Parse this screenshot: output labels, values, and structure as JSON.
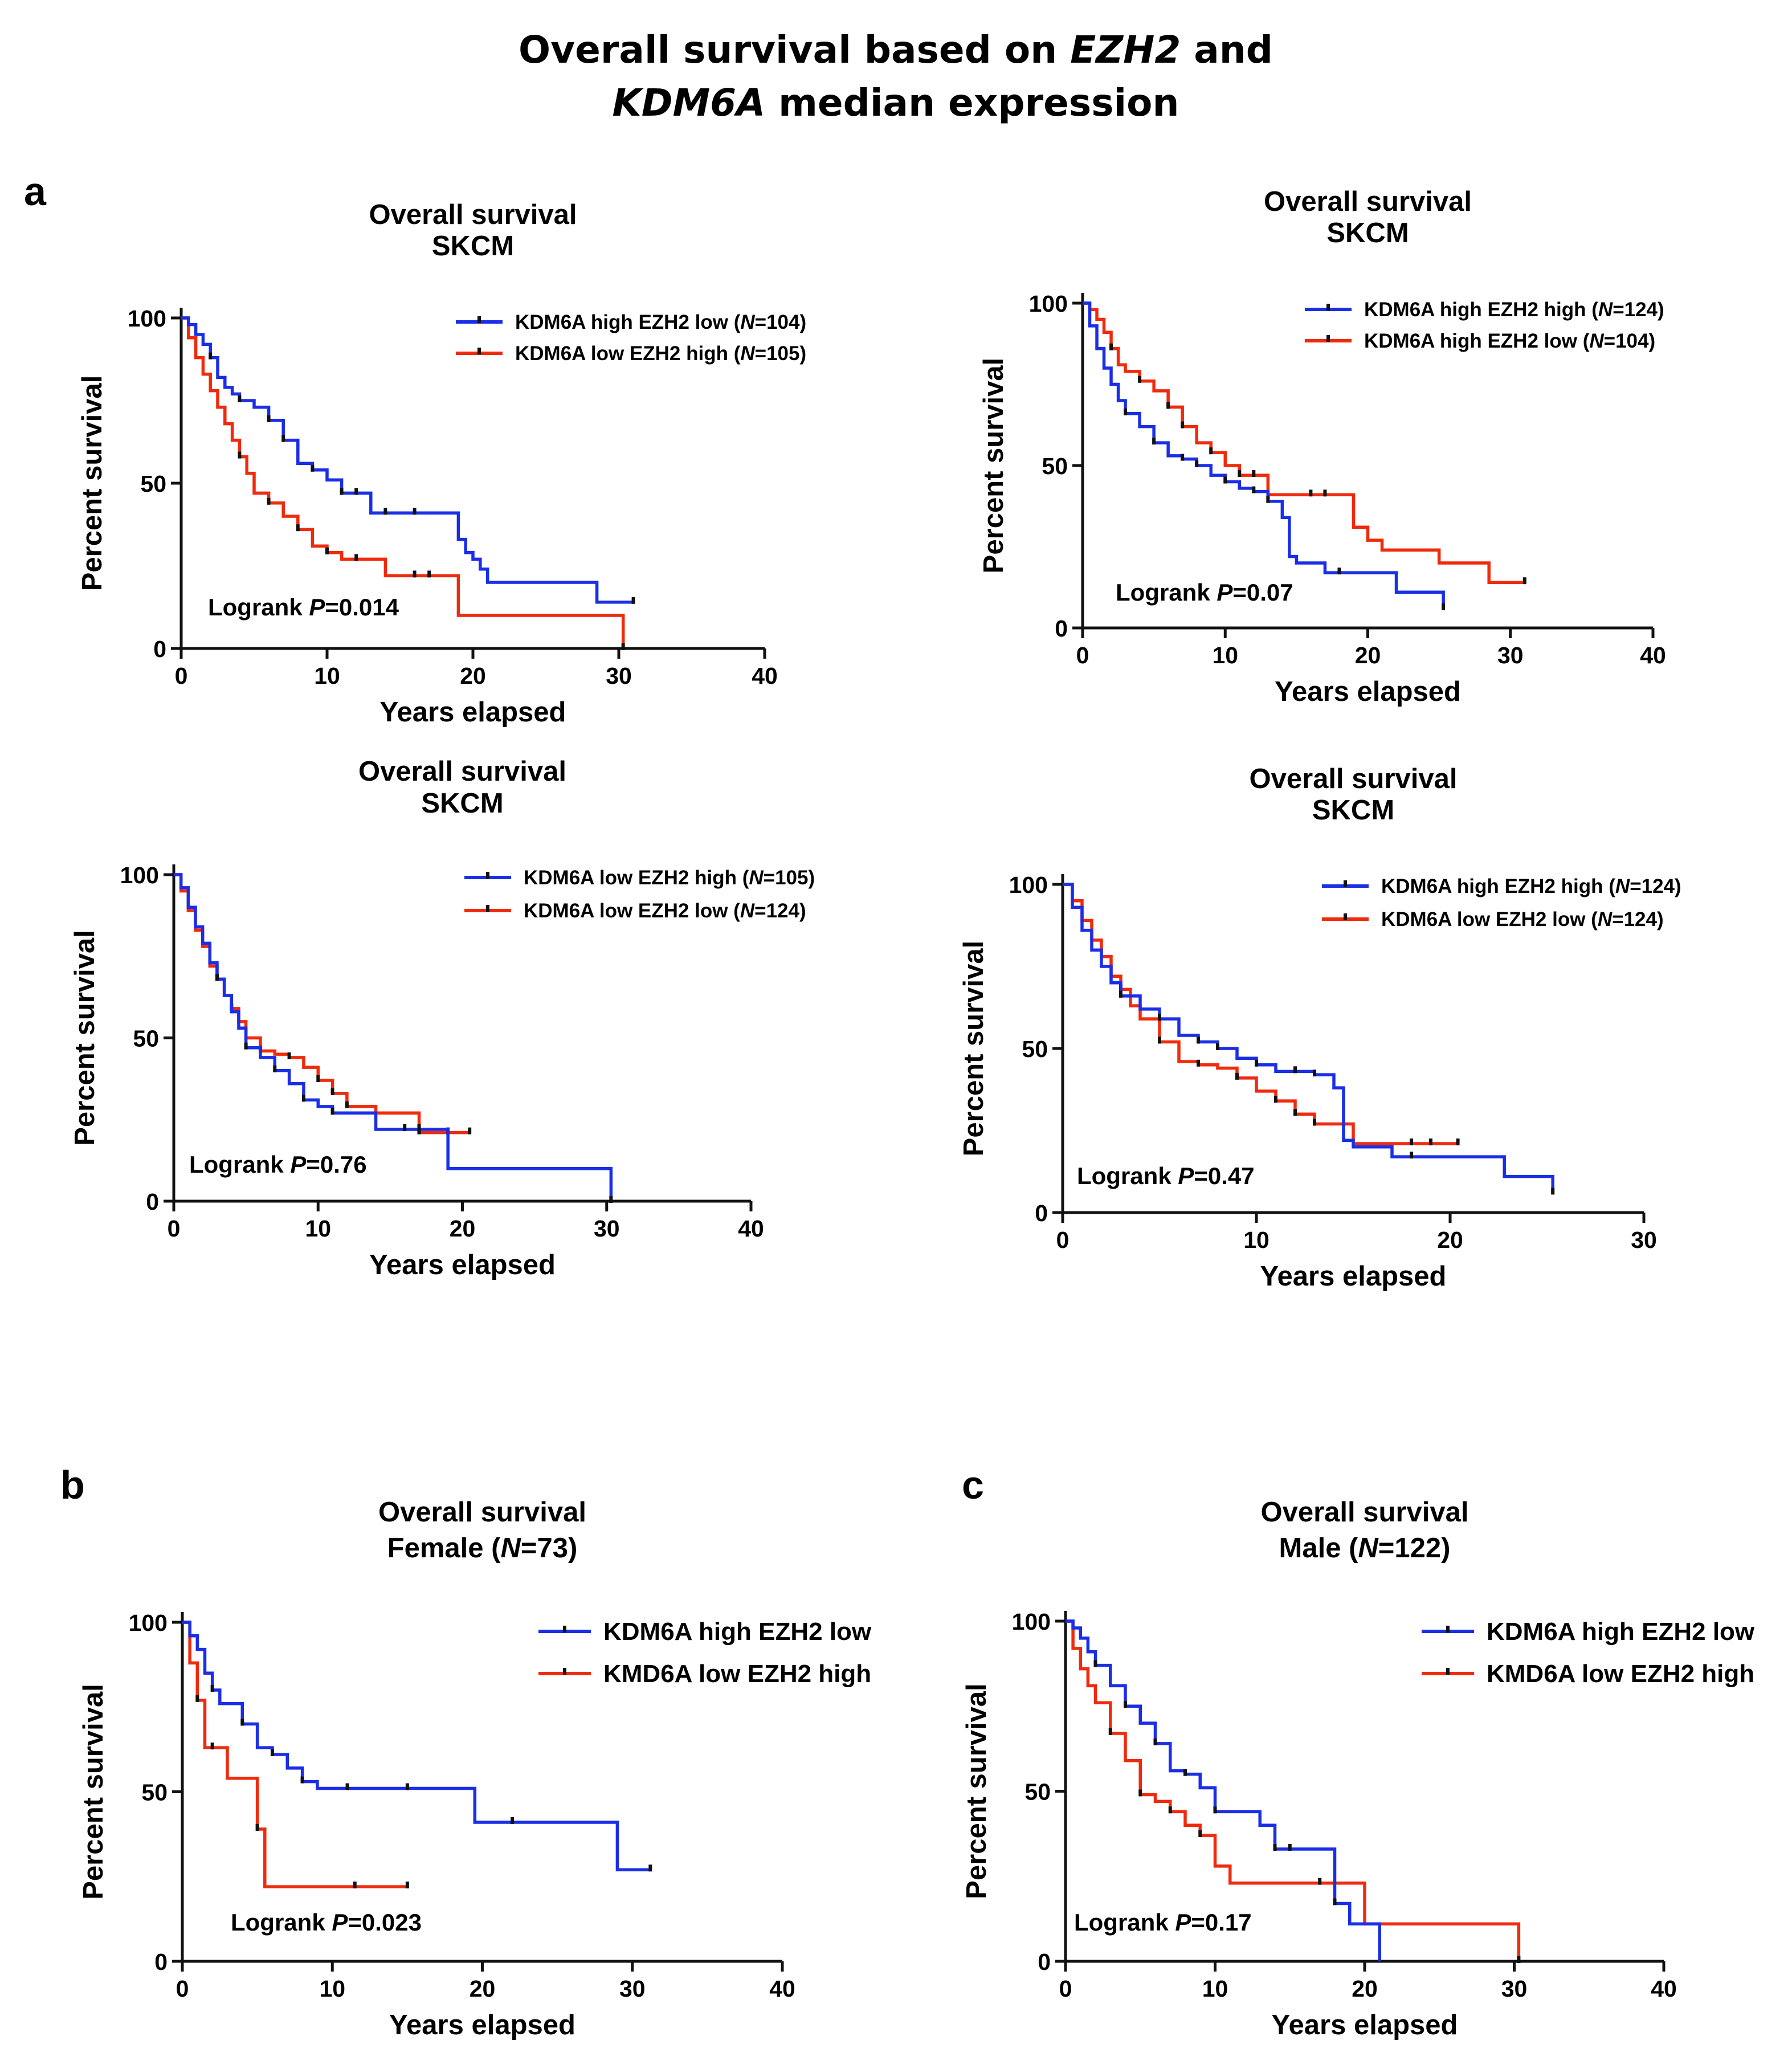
{
  "figure": {
    "title_line1_pre": "Overall survival based on ",
    "title_line1_em": "EZH2",
    "title_line1_post": " and",
    "title_line2_em": "KDM6A",
    "title_line2_post": " median expression",
    "panel_labels": [
      "a",
      "b",
      "c"
    ]
  },
  "colors": {
    "blue": "#1a2ee8",
    "red": "#f02a0c",
    "axis": "#111111",
    "censor": "#111111"
  },
  "chart_data": [
    {
      "type": "line",
      "subtype": "kaplan-meier",
      "title": "Overall survival",
      "subtitle": "SKCM",
      "xlabel": "Years elapsed",
      "ylabel": "Percent survival",
      "xlim": [
        0,
        40
      ],
      "ylim": [
        0,
        100
      ],
      "xticks": [
        0,
        10,
        20,
        30,
        40
      ],
      "yticks": [
        0,
        50,
        100
      ],
      "legend_position": "top-right",
      "logrank_label": "Logrank ",
      "logrank_p": "P",
      "logrank_value": "=0.014",
      "series": [
        {
          "name": "KDM6A high EZH2 low",
          "n": "104",
          "color": "blue",
          "x": [
            0,
            0.5,
            1,
            1.5,
            2,
            2.5,
            3,
            3.5,
            4,
            5,
            6,
            7,
            8,
            9,
            10,
            11,
            12,
            13,
            16,
            18.5,
            19,
            19.5,
            20,
            20.5,
            21,
            25,
            28.5,
            31
          ],
          "y": [
            100,
            98,
            95,
            92,
            88,
            82,
            79,
            77,
            75,
            73,
            69,
            63,
            56,
            54,
            51,
            47,
            47,
            41,
            41,
            41,
            33,
            29,
            27,
            24,
            20,
            20,
            14,
            14
          ],
          "censor_x": [
            2,
            4,
            6,
            7,
            9,
            11,
            12,
            14,
            16,
            31
          ]
        },
        {
          "name": "KDM6A low EZH2 high",
          "n": "105",
          "color": "red",
          "x": [
            0,
            0.5,
            1,
            1.5,
            2,
            2.5,
            3,
            3.5,
            4,
            4.5,
            5,
            6,
            7,
            8,
            9,
            10,
            11,
            14,
            16,
            18,
            19,
            29,
            30,
            30.3
          ],
          "y": [
            100,
            94,
            88,
            83,
            78,
            73,
            68,
            63,
            58,
            53,
            47,
            44,
            40,
            36,
            31,
            29,
            27,
            22,
            22,
            22,
            10,
            10,
            10,
            0
          ],
          "censor_x": [
            4,
            6,
            8,
            10,
            12,
            16,
            17,
            30.3
          ]
        }
      ]
    },
    {
      "type": "line",
      "subtype": "kaplan-meier",
      "title": "Overall survival",
      "subtitle": "SKCM",
      "xlabel": "Years elapsed",
      "ylabel": "Percent survival",
      "xlim": [
        0,
        40
      ],
      "ylim": [
        0,
        100
      ],
      "xticks": [
        0,
        10,
        20,
        30,
        40
      ],
      "yticks": [
        0,
        50,
        100
      ],
      "legend_position": "top-right",
      "logrank_label": "Logrank ",
      "logrank_p": "P",
      "logrank_value": "=0.07",
      "series": [
        {
          "name": "KDM6A high EZH2 high",
          "n": "124",
          "color": "blue",
          "x": [
            0,
            0.5,
            1,
            1.5,
            2,
            2.5,
            3,
            4,
            5,
            6,
            7,
            8,
            9,
            10,
            11,
            12,
            13,
            14,
            14.5,
            15,
            17,
            20,
            22,
            25.3
          ],
          "y": [
            100,
            93,
            86,
            80,
            75,
            70,
            66,
            62,
            57,
            53,
            52,
            50,
            47,
            45,
            43,
            42,
            39,
            34,
            22,
            20,
            17,
            17,
            11,
            6
          ],
          "censor_x": [
            3,
            5,
            7,
            8,
            10,
            12,
            13,
            18,
            25.3
          ]
        },
        {
          "name": "KDM6A high EZH2 low",
          "n": "104",
          "color": "red",
          "x": [
            0,
            0.5,
            1,
            1.5,
            2,
            2.5,
            3,
            4,
            5,
            6,
            7,
            8,
            9,
            10,
            11,
            12,
            13,
            16,
            18,
            19,
            20,
            21,
            25,
            28.5,
            31
          ],
          "y": [
            100,
            98,
            95,
            91,
            86,
            81,
            79,
            76,
            73,
            68,
            62,
            57,
            54,
            50,
            47,
            47,
            41,
            41,
            41,
            31,
            27,
            24,
            20,
            14,
            14
          ],
          "censor_x": [
            2,
            4,
            6,
            7,
            9,
            11,
            12,
            16,
            17,
            31
          ]
        }
      ]
    },
    {
      "type": "line",
      "subtype": "kaplan-meier",
      "title": "Overall survival",
      "subtitle": "SKCM",
      "xlabel": "Years elapsed",
      "ylabel": "Percent survival",
      "xlim": [
        0,
        40
      ],
      "ylim": [
        0,
        100
      ],
      "xticks": [
        0,
        10,
        20,
        30,
        40
      ],
      "yticks": [
        0,
        50,
        100
      ],
      "legend_position": "top-right",
      "logrank_label": "Logrank ",
      "logrank_p": "P",
      "logrank_value": "=0.76",
      "series": [
        {
          "name": "KDM6A low EZH2 high",
          "n": "105",
          "color": "blue",
          "x": [
            0,
            0.5,
            1,
            1.5,
            2,
            2.5,
            3,
            3.5,
            4,
            4.5,
            5,
            6,
            7,
            8,
            9,
            10,
            11,
            14,
            16,
            19,
            30.3
          ],
          "y": [
            100,
            96,
            90,
            84,
            79,
            73,
            68,
            63,
            58,
            53,
            47,
            44,
            40,
            36,
            31,
            29,
            27,
            22,
            22,
            10,
            0
          ],
          "censor_x": [
            3,
            5,
            7,
            9,
            11,
            16,
            17,
            30.3
          ]
        },
        {
          "name": "KDM6A low EZH2 low",
          "n": "124",
          "color": "red",
          "x": [
            0,
            0.5,
            1,
            1.5,
            2,
            2.5,
            3,
            3.5,
            4,
            4.5,
            5,
            6,
            7,
            8,
            9,
            10,
            11,
            12,
            14,
            17,
            19,
            20.5
          ],
          "y": [
            100,
            95,
            89,
            83,
            78,
            72,
            68,
            63,
            59,
            55,
            50,
            46,
            45,
            44,
            41,
            37,
            33,
            29,
            27,
            21,
            21,
            21
          ],
          "censor_x": [
            4,
            6,
            8,
            10,
            11,
            12,
            17,
            19,
            20.5
          ]
        }
      ]
    },
    {
      "type": "line",
      "subtype": "kaplan-meier",
      "title": "Overall survival",
      "subtitle": "SKCM",
      "xlabel": "Years elapsed",
      "ylabel": "Percent survival",
      "xlim": [
        0,
        30
      ],
      "ylim": [
        0,
        100
      ],
      "xticks": [
        0,
        10,
        20,
        30
      ],
      "yticks": [
        0,
        50,
        100
      ],
      "legend_position": "top-right",
      "logrank_label": "Logrank ",
      "logrank_p": "P",
      "logrank_value": "=0.47",
      "series": [
        {
          "name": "KDM6A high EZH2 high",
          "n": "124",
          "color": "blue",
          "x": [
            0,
            0.5,
            1,
            1.5,
            2,
            2.5,
            3,
            4,
            5,
            6,
            7,
            8,
            9,
            10,
            11,
            12,
            13,
            14,
            14.5,
            15,
            17,
            20,
            22.8,
            25.3
          ],
          "y": [
            100,
            93,
            86,
            80,
            75,
            70,
            66,
            62,
            59,
            54,
            52,
            50,
            47,
            45,
            43,
            43,
            42,
            38,
            22,
            20,
            17,
            17,
            11,
            6
          ],
          "censor_x": [
            3,
            5,
            7,
            8,
            10,
            12,
            13,
            18,
            25.3
          ]
        },
        {
          "name": "KDM6A low EZH2 low",
          "n": "124",
          "color": "red",
          "x": [
            0,
            0.5,
            1,
            1.5,
            2,
            2.5,
            3,
            3.5,
            4,
            5,
            6,
            7,
            8,
            9,
            10,
            11,
            12,
            13,
            14,
            15,
            17.2,
            18,
            20.4
          ],
          "y": [
            100,
            95,
            89,
            83,
            78,
            72,
            68,
            63,
            59,
            52,
            46,
            45,
            44,
            41,
            37,
            34,
            30,
            27,
            27,
            21,
            21,
            21,
            21
          ],
          "censor_x": [
            3,
            5,
            7,
            9,
            11,
            12,
            13,
            18,
            19,
            20.4
          ]
        }
      ]
    },
    {
      "type": "line",
      "subtype": "kaplan-meier",
      "title": "Overall survival",
      "subtitle_pre": "Female (",
      "subtitle_n": "N",
      "subtitle_post": "=73)",
      "xlabel": "Years elapsed",
      "ylabel": "Percent survival",
      "xlim": [
        0,
        40
      ],
      "ylim": [
        0,
        100
      ],
      "xticks": [
        0,
        10,
        20,
        30,
        40
      ],
      "yticks": [
        0,
        50,
        100
      ],
      "legend_position": "top-right",
      "logrank_label": "Logrank ",
      "logrank_p": "P",
      "logrank_value": "=0.023",
      "series": [
        {
          "name": "KDM6A high EZH2 low",
          "color": "blue",
          "x": [
            0,
            0.5,
            1,
            1.5,
            2,
            2.5,
            3,
            4,
            5,
            6,
            7,
            8,
            9,
            19.5,
            29,
            31.2
          ],
          "y": [
            100,
            96,
            92,
            85,
            80,
            76,
            76,
            70,
            63,
            61,
            57,
            53,
            51,
            41,
            27,
            27
          ],
          "censor_x": [
            2,
            4,
            6,
            8,
            11,
            15,
            22,
            31.2
          ]
        },
        {
          "name": "KMD6A low EZH2 high",
          "color": "red",
          "x": [
            0,
            0.5,
            1,
            1.5,
            2,
            3,
            5,
            5.5,
            6,
            15
          ],
          "y": [
            100,
            88,
            77,
            63,
            63,
            54,
            39,
            22,
            22,
            22
          ],
          "censor_x": [
            1,
            2,
            5,
            11.5,
            15
          ]
        }
      ]
    },
    {
      "type": "line",
      "subtype": "kaplan-meier",
      "title": "Overall survival",
      "subtitle_pre": "Male (",
      "subtitle_n": "N",
      "subtitle_post": "=122)",
      "xlabel": "Years elapsed",
      "ylabel": "Percent survival",
      "xlim": [
        0,
        40
      ],
      "ylim": [
        0,
        100
      ],
      "xticks": [
        0,
        10,
        20,
        30,
        40
      ],
      "yticks": [
        0,
        50,
        100
      ],
      "legend_position": "top-right",
      "logrank_label": "Logrank ",
      "logrank_p": "P",
      "logrank_value": "=0.17",
      "series": [
        {
          "name": "KDM6A high EZH2 low",
          "color": "blue",
          "x": [
            0,
            0.5,
            1,
            1.5,
            2,
            3,
            4,
            5,
            6,
            7,
            8,
            9,
            10,
            13,
            14,
            18,
            19,
            21
          ],
          "y": [
            100,
            98,
            95,
            91,
            87,
            81,
            75,
            70,
            64,
            56,
            55,
            51,
            44,
            40,
            33,
            17,
            11,
            0
          ],
          "censor_x": [
            2,
            4,
            6,
            8,
            10,
            14,
            15,
            18
          ]
        },
        {
          "name": "KMD6A low EZH2 high",
          "color": "red",
          "x": [
            0,
            0.5,
            1,
            1.5,
            2,
            3,
            4,
            5,
            6,
            7,
            8,
            9,
            10,
            11,
            19,
            20,
            30,
            30.3
          ],
          "y": [
            100,
            92,
            86,
            81,
            76,
            67,
            59,
            49,
            47,
            44,
            40,
            37,
            28,
            23,
            23,
            11,
            11,
            0
          ],
          "censor_x": [
            3,
            5,
            7,
            9,
            17,
            30.3
          ]
        }
      ]
    }
  ]
}
